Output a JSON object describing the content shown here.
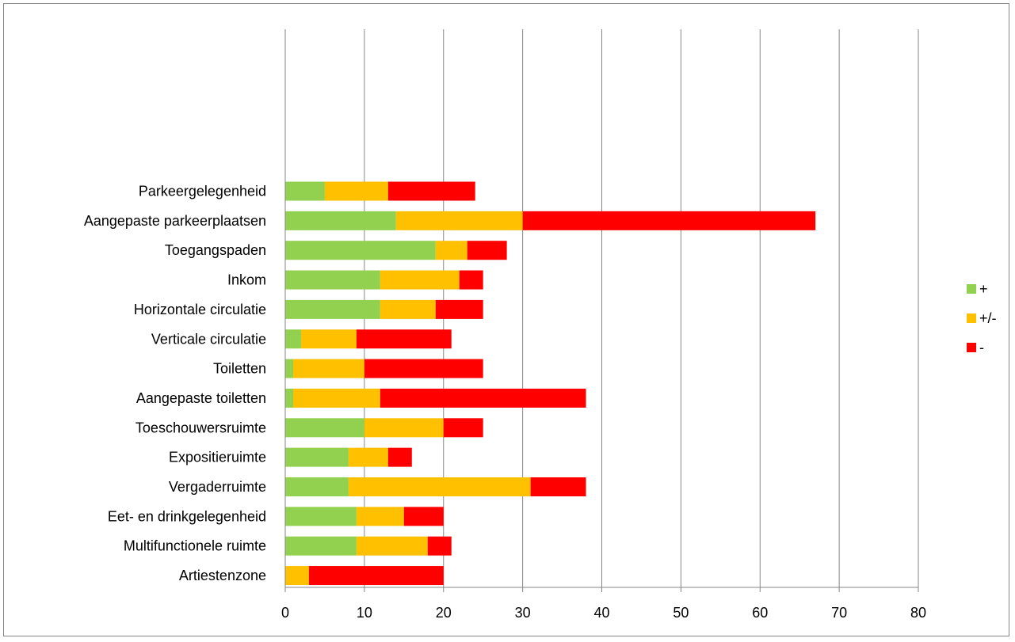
{
  "chart_data": {
    "type": "bar",
    "orientation": "horizontal",
    "stacked": true,
    "title": "",
    "xlabel": "",
    "ylabel": "",
    "xlim": [
      0,
      80
    ],
    "x_ticks": [
      0,
      10,
      20,
      30,
      40,
      50,
      60,
      70,
      80
    ],
    "grid": "vertical",
    "legend_position": "right",
    "categories": [
      "Parkeergelegenheid",
      "Aangepaste parkeerplaatsen",
      "Toegangspaden",
      "Inkom",
      "Horizontale circulatie",
      "Verticale circulatie",
      "Toiletten",
      "Aangepaste toiletten",
      "Toeschouwersruimte",
      "Expositieruimte",
      "Vergaderruimte",
      "Eet- en drinkgelegenheid",
      "Multifunctionele ruimte",
      "Artiestenzone"
    ],
    "series": [
      {
        "name": "+",
        "color": "#92d050",
        "values": [
          5,
          14,
          19,
          12,
          12,
          2,
          1,
          1,
          10,
          8,
          8,
          9,
          9,
          0
        ]
      },
      {
        "name": "+/-",
        "color": "#ffc000",
        "values": [
          8,
          16,
          4,
          10,
          7,
          7,
          9,
          11,
          10,
          5,
          23,
          6,
          9,
          3
        ]
      },
      {
        "name": "-",
        "color": "#ff0000",
        "values": [
          11,
          37,
          5,
          3,
          6,
          12,
          15,
          26,
          5,
          3,
          7,
          5,
          3,
          17
        ]
      }
    ]
  }
}
